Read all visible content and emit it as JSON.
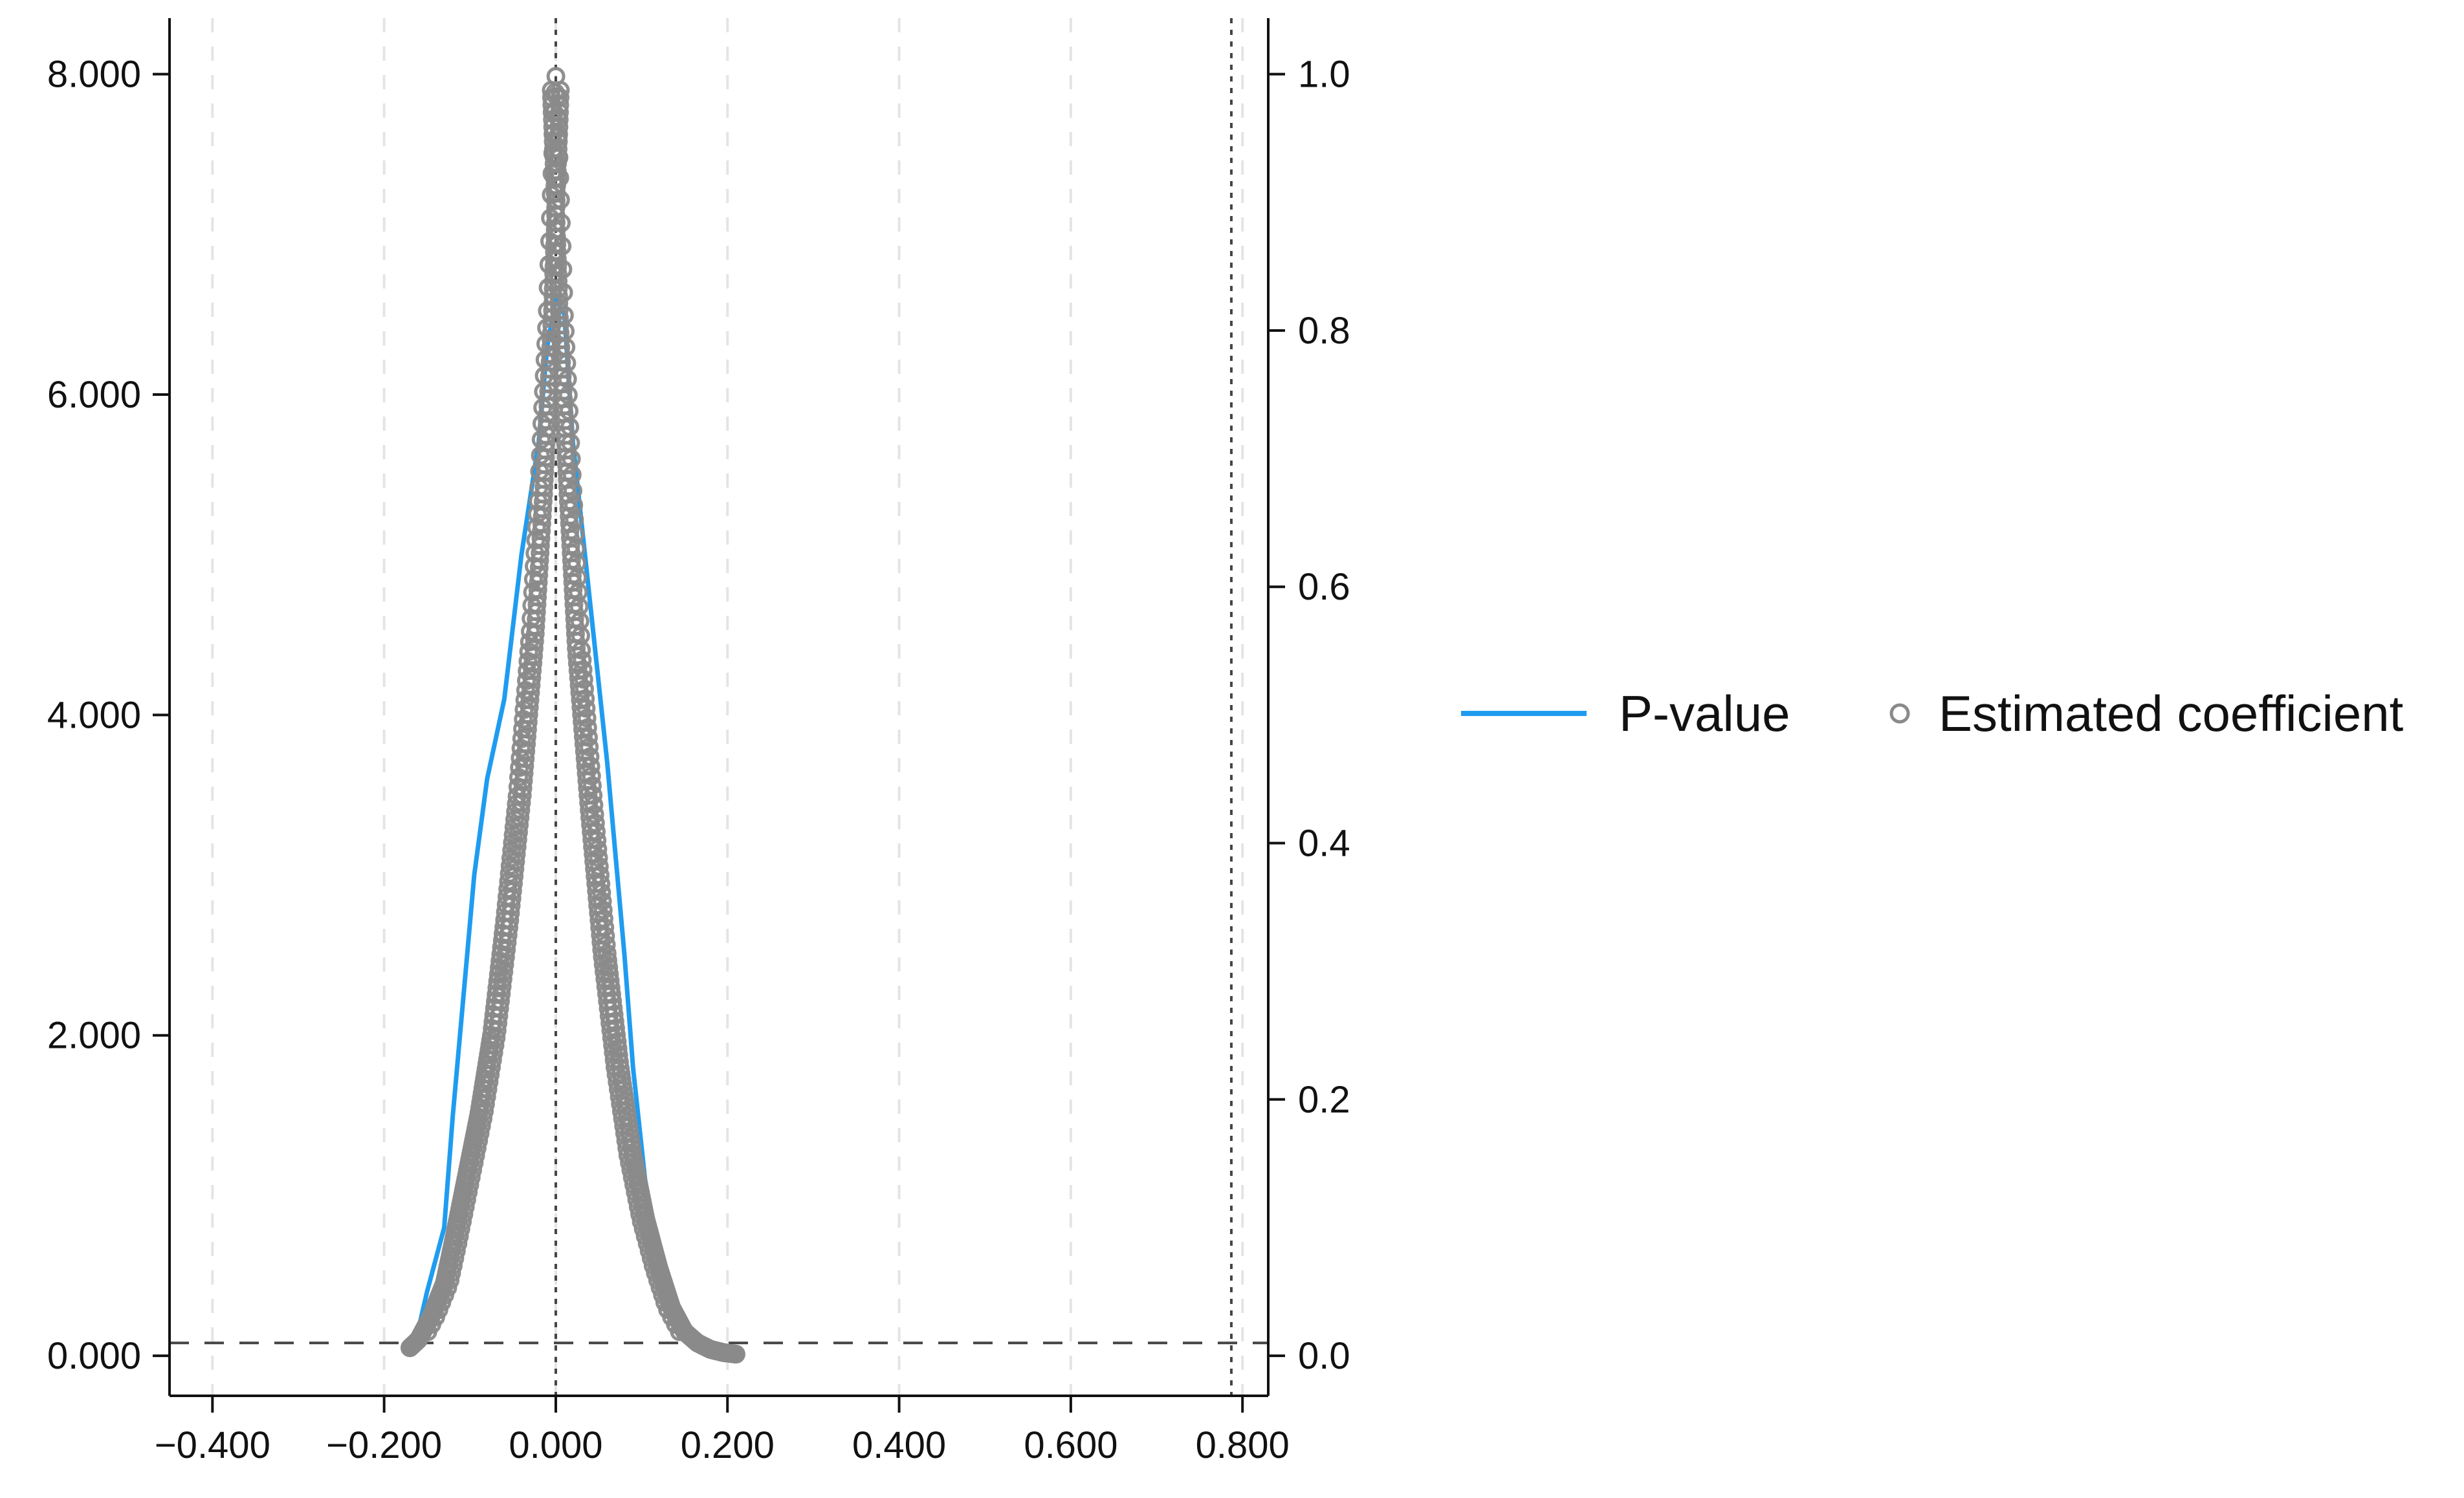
{
  "chart_data": {
    "type": "scatter",
    "title": "",
    "xlabel": "",
    "ylabel": "",
    "y2label": "",
    "xlim": [
      -0.45,
      0.83
    ],
    "ylim": [
      -0.25,
      8.35
    ],
    "y2lim": [
      -0.03125,
      1.04375
    ],
    "x_ticks": [
      -0.4,
      -0.2,
      0.0,
      0.2,
      0.4,
      0.6,
      0.8
    ],
    "x_tick_labels": [
      "−0.400",
      "−0.200",
      "0.000",
      "0.200",
      "0.400",
      "0.600",
      "0.800"
    ],
    "y_ticks": [
      0,
      2,
      4,
      6,
      8
    ],
    "y_tick_labels": [
      "0.000",
      "2.000",
      "4.000",
      "6.000",
      "8.000"
    ],
    "y2_ticks": [
      0.0,
      0.2,
      0.4,
      0.6,
      0.8,
      1.0
    ],
    "y2_tick_labels": [
      "0.0",
      "0.2",
      "0.4",
      "0.6",
      "0.8",
      "1.0"
    ],
    "grid": "vertical-dashed",
    "reference_lines": {
      "vertical": [
        0.0,
        0.787
      ],
      "horizontal_right_axis": [
        0.01
      ]
    },
    "legend": {
      "placement": "right",
      "entries": [
        "P-value",
        "Estimated coefficient"
      ]
    },
    "series": [
      {
        "name": "P-value",
        "kind": "line",
        "axis": "left",
        "color": "#1f9cf0",
        "x": [
          -0.165,
          -0.15,
          -0.13,
          -0.12,
          -0.105,
          -0.095,
          -0.08,
          -0.06,
          -0.04,
          -0.02,
          -0.01,
          0.0,
          0.01,
          0.02,
          0.04,
          0.06,
          0.08,
          0.09,
          0.11,
          0.13,
          0.15,
          0.17,
          0.19,
          0.2
        ],
        "y": [
          0.05,
          0.4,
          0.8,
          1.5,
          2.4,
          3.0,
          3.6,
          4.1,
          5.0,
          5.7,
          6.3,
          6.6,
          6.5,
          5.7,
          4.7,
          3.7,
          2.5,
          1.8,
          0.8,
          0.3,
          0.15,
          0.06,
          0.03,
          0.02
        ]
      },
      {
        "name": "Estimated coefficient",
        "kind": "scatter",
        "axis": "left",
        "color": "#8a8a8a",
        "profile_x": [
          -0.17,
          -0.16,
          -0.145,
          -0.13,
          -0.12,
          -0.105,
          -0.09,
          -0.075,
          -0.06,
          -0.045,
          -0.03,
          -0.02,
          -0.01,
          -0.005,
          0.0,
          0.005,
          0.01,
          0.02,
          0.03,
          0.045,
          0.06,
          0.075,
          0.09,
          0.105,
          0.12,
          0.135,
          0.15,
          0.165,
          0.18,
          0.195,
          0.21
        ],
        "profile_y": [
          0.05,
          0.1,
          0.25,
          0.45,
          0.7,
          1.1,
          1.5,
          2.0,
          2.7,
          3.5,
          4.5,
          5.4,
          6.5,
          7.3,
          8.0,
          7.3,
          6.5,
          5.4,
          4.4,
          3.4,
          2.5,
          1.8,
          1.25,
          0.85,
          0.55,
          0.3,
          0.15,
          0.08,
          0.04,
          0.02,
          0.01
        ]
      }
    ]
  }
}
